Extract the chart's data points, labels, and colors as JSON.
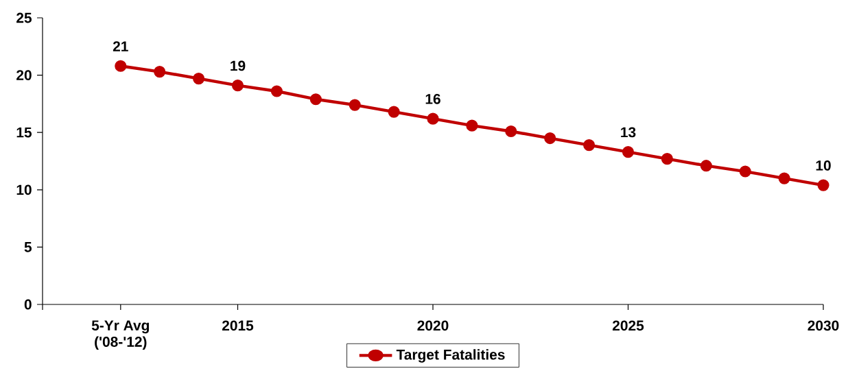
{
  "chart_data": {
    "type": "line",
    "x": [
      2012,
      2013,
      2014,
      2015,
      2016,
      2017,
      2018,
      2019,
      2020,
      2021,
      2022,
      2023,
      2024,
      2025,
      2026,
      2027,
      2028,
      2029,
      2030
    ],
    "series": [
      {
        "name": "Target Fatalities",
        "color": "#c00000",
        "values": [
          20.8,
          20.3,
          19.7,
          19.1,
          18.6,
          17.9,
          17.4,
          16.8,
          16.2,
          15.6,
          15.1,
          14.5,
          13.9,
          13.3,
          12.7,
          12.1,
          11.6,
          11.0,
          10.4
        ],
        "value_labels": [
          "21",
          null,
          null,
          "19",
          null,
          null,
          null,
          null,
          "16",
          null,
          null,
          null,
          null,
          "13",
          null,
          null,
          null,
          null,
          "10"
        ]
      }
    ],
    "xlim": [
      2010,
      2030
    ],
    "xticks": [
      {
        "value": 2010,
        "label": null
      },
      {
        "value": 2012,
        "label": "5-Yr Avg ('08-'12)"
      },
      2015,
      2020,
      2025,
      2030
    ],
    "ylim": [
      0,
      25
    ],
    "yticks": [
      0,
      5,
      10,
      15,
      20,
      25
    ],
    "marker": "circle",
    "line_style": "solid",
    "grid": false,
    "legend": "bottom"
  }
}
